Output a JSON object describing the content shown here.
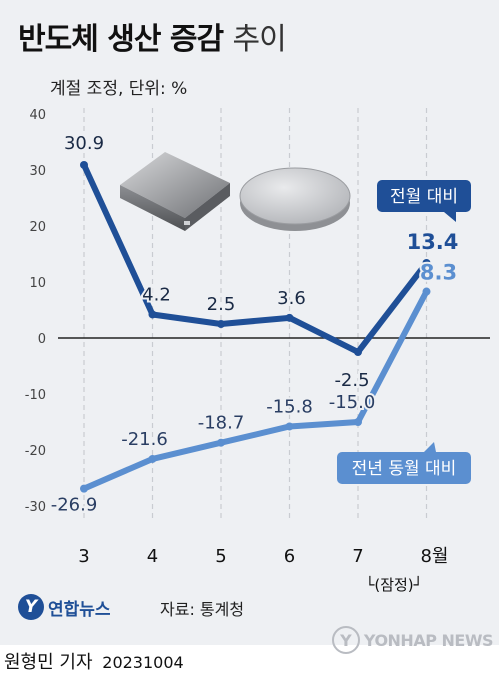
{
  "title_main": "반도체 생산 증감",
  "title_suffix": "추이",
  "subtitle": "계절 조정, 단위: %",
  "source": "자료: 통계청",
  "logo_text": "연합뉴스",
  "logo_mark": "Y",
  "byline": "원형민 기자",
  "date": "20231004",
  "watermark": "YONHAP NEWS",
  "colors": {
    "mom": "#1f4f97",
    "yoy": "#5b8fd0",
    "zero_line": "#222222",
    "grid": "#c9ccd1"
  },
  "chart_data": {
    "type": "line",
    "categories": [
      "3",
      "4",
      "5",
      "6",
      "7",
      "8월"
    ],
    "category_note": "└(잠정)┘",
    "ylim": [
      -30,
      40
    ],
    "yticks": [
      40,
      30,
      20,
      10,
      0,
      -10,
      -20,
      -30
    ],
    "series": [
      {
        "name": "전월 대비",
        "values": [
          30.9,
          4.2,
          2.5,
          3.6,
          -2.5,
          13.4
        ],
        "labels": [
          "30.9",
          "4.2",
          "2.5",
          "3.6",
          "-2.5",
          "13.4"
        ]
      },
      {
        "name": "전년 동월 대비",
        "values": [
          -26.9,
          -21.6,
          -18.7,
          -15.8,
          -15.0,
          8.3
        ],
        "labels": [
          "-26.9",
          "-21.6",
          "-18.7",
          "-15.8",
          "-15.0",
          "8.3"
        ]
      }
    ]
  }
}
